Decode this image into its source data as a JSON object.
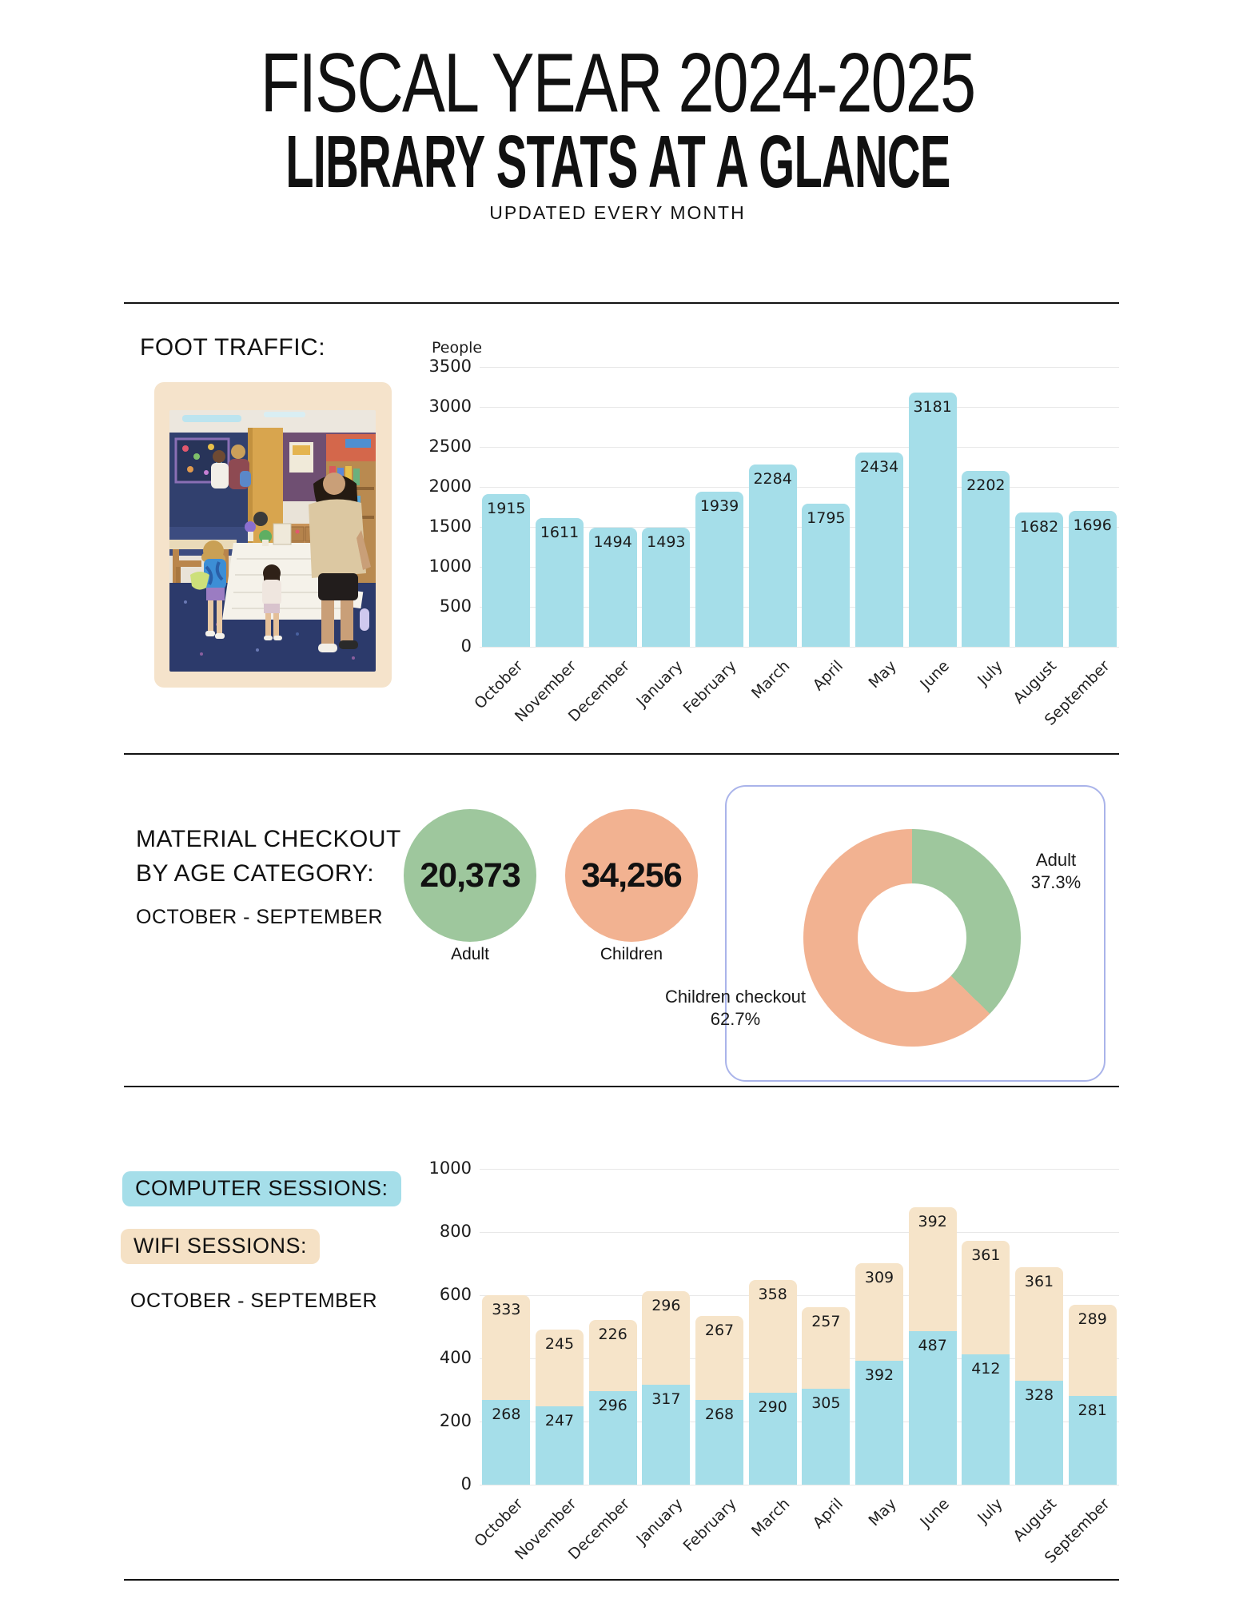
{
  "page": {
    "title1": "FISCAL YEAR 2024-2025",
    "title2": "LIBRARY STATS AT A GLANCE",
    "tagline": "UPDATED EVERY MONTH"
  },
  "colors": {
    "bar_blue": "#a5dee9",
    "wifi_bar": "#f6e4c9",
    "wifi_pill": "#f5e1c5",
    "photo_frame": "#f5e3cb",
    "green": "#9ec79d",
    "orange": "#f2b291",
    "panel_border": "#aab4ea"
  },
  "foot_traffic": {
    "heading": "FOOT TRAFFIC:"
  },
  "chart_data": [
    {
      "id": "foot-traffic-chart",
      "type": "bar",
      "title": "FOOT TRAFFIC:",
      "ylabel": "People",
      "categories": [
        "October",
        "November",
        "December",
        "January",
        "February",
        "March",
        "April",
        "May",
        "June",
        "July",
        "August",
        "September"
      ],
      "values": [
        1915,
        1611,
        1494,
        1493,
        1939,
        2284,
        1795,
        2434,
        3181,
        2202,
        1682,
        1696
      ],
      "ylim": [
        0,
        3500
      ],
      "ytick_step": 500,
      "grid": true,
      "bar_color": "#a5dee9",
      "legend_position": "none"
    },
    {
      "id": "checkout-donut",
      "type": "pie",
      "labels": [
        "Adult",
        "Children checkout"
      ],
      "values_pct": [
        37.3,
        62.7
      ],
      "values_counts": [
        20373,
        34256
      ],
      "colors": [
        "#9ec79d",
        "#f2b291"
      ]
    },
    {
      "id": "sessions-chart",
      "type": "bar",
      "stacked": true,
      "categories": [
        "October",
        "November",
        "December",
        "January",
        "February",
        "March",
        "April",
        "May",
        "June",
        "July",
        "August",
        "September"
      ],
      "series": [
        {
          "name": "COMPUTER SESSIONS",
          "color": "#a5dee9",
          "values": [
            268,
            247,
            296,
            317,
            268,
            290,
            305,
            392,
            487,
            412,
            328,
            281
          ]
        },
        {
          "name": "WIFI SESSIONS",
          "color": "#f6e4c9",
          "values": [
            333,
            245,
            226,
            296,
            267,
            358,
            257,
            309,
            392,
            361,
            361,
            289
          ]
        }
      ],
      "ylim": [
        0,
        1000
      ],
      "ytick_step": 200,
      "grid": true,
      "legend_position": "left-headings"
    }
  ],
  "material_checkout": {
    "heading_line1": "MATERIAL CHECKOUT",
    "heading_line2": "BY AGE CATEGORY:",
    "period": "OCTOBER - SEPTEMBER",
    "adult_value": "20,373",
    "adult_label": "Adult",
    "children_value": "34,256",
    "children_label": "Children",
    "donut_adult_label": "Adult",
    "donut_adult_pct": "37.3%",
    "donut_children_label": "Children checkout",
    "donut_children_pct": "62.7%"
  },
  "sessions_section": {
    "computer_heading": "COMPUTER SESSIONS:",
    "wifi_heading": "WIFI SESSIONS:",
    "period": "OCTOBER - SEPTEMBER"
  }
}
